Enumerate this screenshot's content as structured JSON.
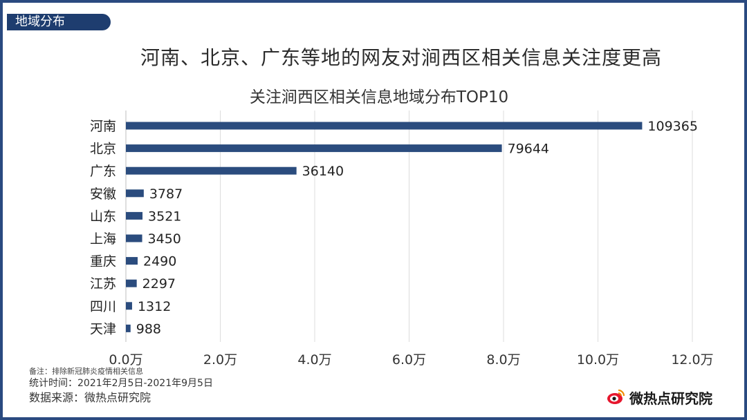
{
  "section_tag": "地域分布",
  "headline": "河南、北京、广东等地的网友对涧西区相关信息关注度更高",
  "notes": {
    "remark": "备注：排除新冠肺炎疫情相关信息",
    "period": "统计时间：2021年2月5日-2021年9月5日",
    "source": "数据来源：微热点研究院"
  },
  "brand": {
    "name": "微热点研究院",
    "icon": "weibo-eye-icon"
  },
  "colors": {
    "bar": "#2b4c7e",
    "frame": "#2a4a80",
    "tag": "#1e3d6f",
    "grid": "#dcdcdc"
  },
  "chart_data": {
    "type": "bar",
    "orientation": "horizontal",
    "title": "关注涧西区相关信息地域分布TOP10",
    "categories": [
      "河南",
      "北京",
      "广东",
      "安徽",
      "山东",
      "上海",
      "重庆",
      "江苏",
      "四川",
      "天津"
    ],
    "values": [
      109365,
      79644,
      36140,
      3787,
      3521,
      3450,
      2490,
      2297,
      1312,
      988
    ],
    "data_labels": [
      "109365",
      "79644",
      "36140",
      "3787",
      "3521",
      "3450",
      "2490",
      "2297",
      "1312",
      "988"
    ],
    "xlim": [
      0,
      120000
    ],
    "xticks": [
      0,
      20000,
      40000,
      60000,
      80000,
      100000,
      120000
    ],
    "xtick_labels": [
      "0.0万",
      "2.0万",
      "4.0万",
      "6.0万",
      "8.0万",
      "10.0万",
      "12.0万"
    ],
    "grid": true,
    "xlabel": "",
    "ylabel": ""
  }
}
